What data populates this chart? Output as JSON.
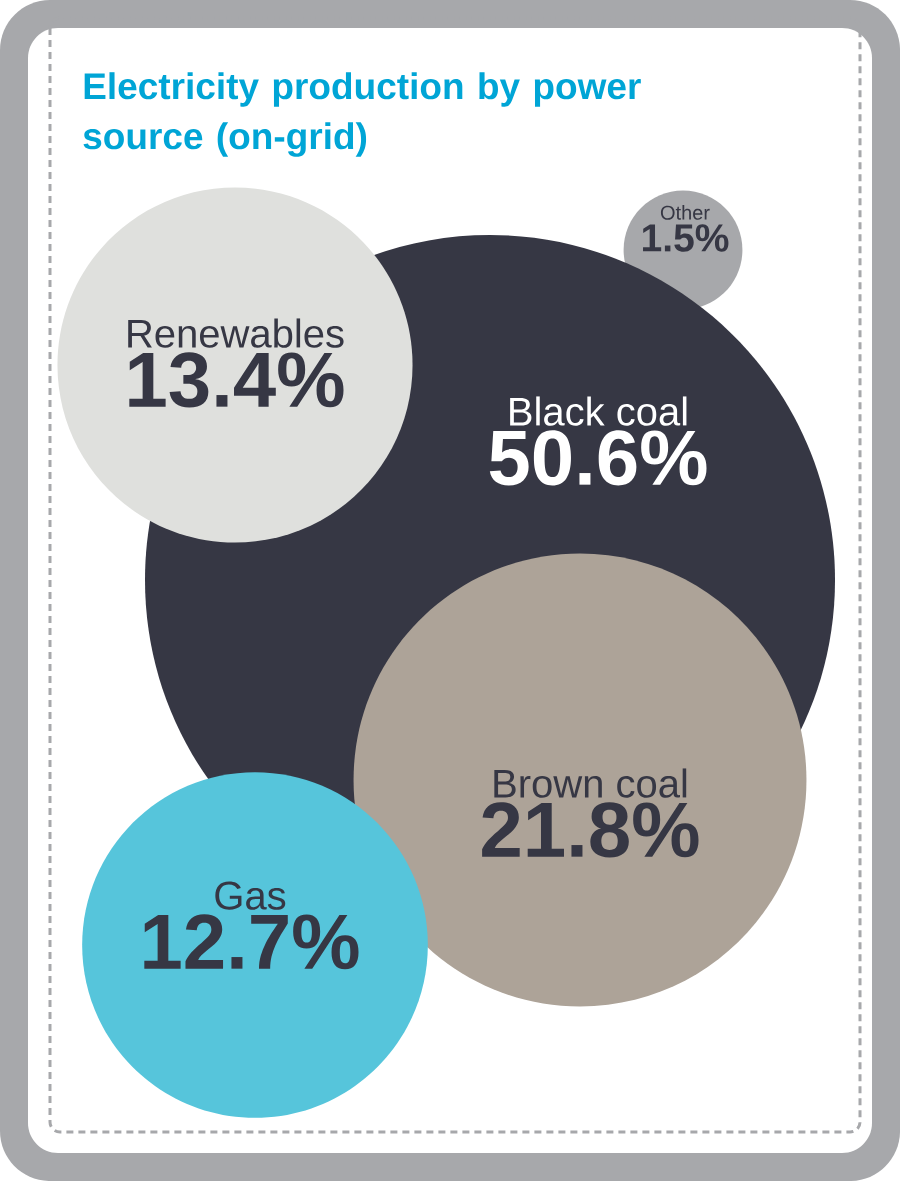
{
  "chart_data": {
    "type": "other",
    "title": "Electricity production by power source (on-grid)",
    "categories": [
      "Black coal",
      "Brown coal",
      "Renewables",
      "Gas",
      "Other"
    ],
    "values": [
      50.6,
      21.8,
      13.4,
      12.7,
      1.5
    ],
    "value_labels": [
      "50.6%",
      "21.8%",
      "13.4%",
      "12.7%",
      "1.5%"
    ],
    "colors": [
      "#363744",
      "#ada398",
      "#dfe0dd",
      "#56c5db",
      "#a7a8ab"
    ]
  }
}
